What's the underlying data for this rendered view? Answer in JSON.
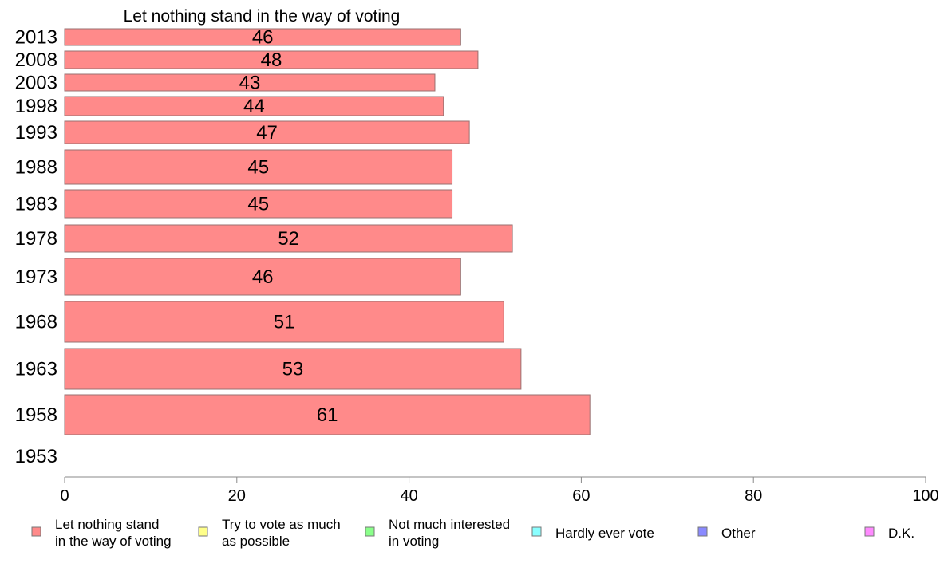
{
  "chart_data": {
    "type": "bar",
    "orientation": "horizontal",
    "title": "Let nothing stand in the way of voting",
    "categories": [
      "2013",
      "2008",
      "2003",
      "1998",
      "1993",
      "1988",
      "1983",
      "1978",
      "1973",
      "1968",
      "1963",
      "1958",
      "1953"
    ],
    "series": [
      {
        "name": "Let nothing stand in the way of voting",
        "color": "#ff8a8a",
        "values": [
          46,
          48,
          43,
          44,
          47,
          45,
          45,
          52,
          46,
          51,
          53,
          61,
          null
        ],
        "labels": [
          "46",
          "48",
          "43",
          "44",
          "47",
          "45",
          "45",
          "52",
          "46",
          "51",
          "53",
          "61",
          ""
        ]
      }
    ],
    "xlim": [
      0,
      100
    ],
    "xticks": [
      "0",
      "20",
      "40",
      "60",
      "80",
      "100"
    ],
    "grid": false,
    "legend_position": "bottom",
    "legend": [
      {
        "lines": [
          "Let nothing stand",
          "in the way of voting"
        ],
        "color": "#ff8a8a"
      },
      {
        "lines": [
          "Try to vote as much",
          "as possible"
        ],
        "color": "#ffff8a"
      },
      {
        "lines": [
          "Not much interested",
          "in voting"
        ],
        "color": "#8aff8a"
      },
      {
        "lines": [
          "Hardly ever vote"
        ],
        "color": "#8affff"
      },
      {
        "lines": [
          "Other"
        ],
        "color": "#8a8aff"
      },
      {
        "lines": [
          "D.K."
        ],
        "color": "#ff8aff"
      }
    ]
  }
}
